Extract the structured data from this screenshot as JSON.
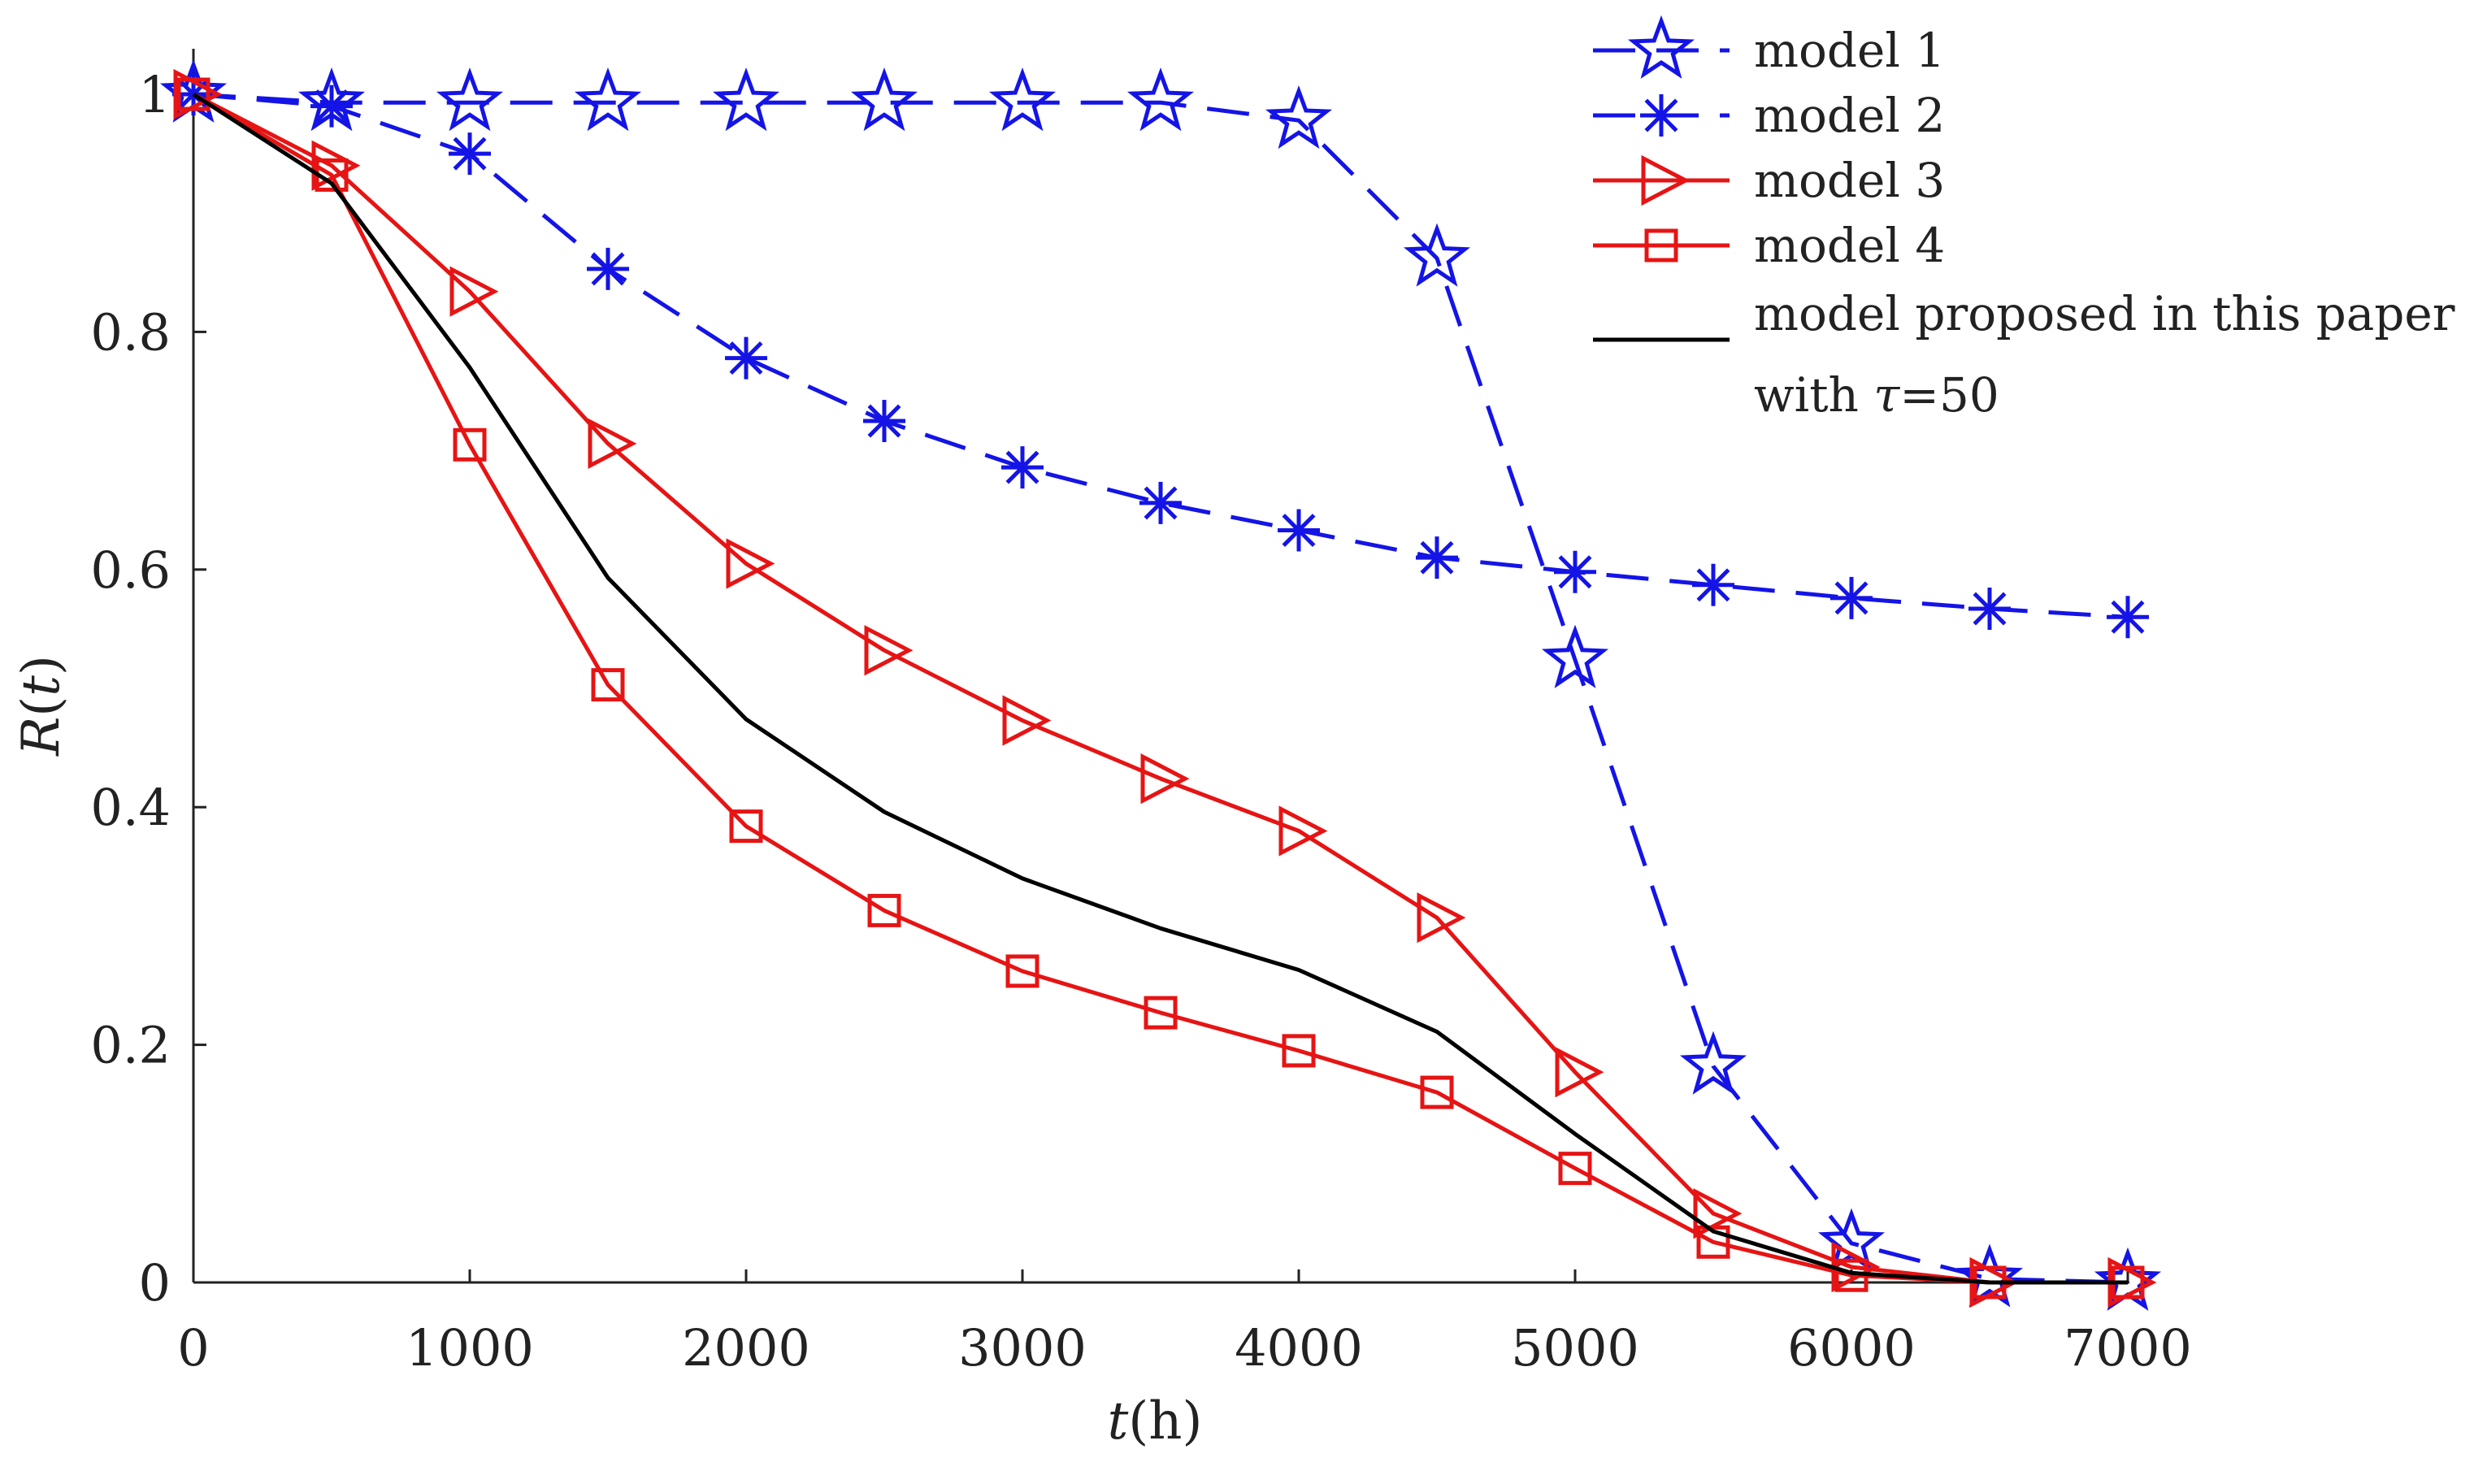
{
  "chart_data": {
    "type": "line",
    "title": "",
    "xlabel": {
      "italic": "t",
      "rest": "(h)"
    },
    "ylabel": {
      "plain": "R",
      "italic": "t"
    },
    "xlim": [
      0,
      7000
    ],
    "ylim": [
      0,
      1.05
    ],
    "x": [
      0,
      500,
      1000,
      1500,
      2000,
      2500,
      3000,
      3500,
      4000,
      4500,
      5000,
      5500,
      6000,
      6500,
      7000
    ],
    "xticks": [
      0,
      1000,
      2000,
      3000,
      4000,
      5000,
      6000,
      7000
    ],
    "xtick_labels": [
      "0",
      "1000",
      "2000",
      "3000",
      "4000",
      "5000",
      "6000",
      "7000"
    ],
    "yticks": [
      0,
      0.2,
      0.4,
      0.6,
      0.8,
      1
    ],
    "ytick_labels": [
      "0",
      "0.2",
      "0.4",
      "0.6",
      "0.8",
      "1"
    ],
    "legend_position": "top-right",
    "series": [
      {
        "key": "m1",
        "name": "model 1",
        "color": "#1414e6",
        "dash": "dashed",
        "marker": "star",
        "values": [
          1.0,
          0.993,
          0.993,
          0.993,
          0.993,
          0.993,
          0.993,
          0.993,
          0.978,
          0.862,
          0.524,
          0.182,
          0.033,
          0.003,
          0.0
        ]
      },
      {
        "key": "m2",
        "name": "model 2",
        "color": "#1414e6",
        "dash": "dashed",
        "marker": "asterisk",
        "values": [
          1.0,
          0.99,
          0.95,
          0.853,
          0.778,
          0.725,
          0.686,
          0.656,
          0.633,
          0.61,
          0.598,
          0.587,
          0.576,
          0.567,
          0.56
        ]
      },
      {
        "key": "m3",
        "name": "model 3",
        "color": "#e61414",
        "dash": "solid",
        "marker": "triangle-right",
        "values": [
          1.0,
          0.94,
          0.834,
          0.706,
          0.605,
          0.532,
          0.473,
          0.424,
          0.38,
          0.307,
          0.177,
          0.058,
          0.013,
          0.0,
          0.0
        ]
      },
      {
        "key": "m4",
        "name": "model 4",
        "color": "#e61414",
        "dash": "solid",
        "marker": "square",
        "values": [
          1.0,
          0.932,
          0.705,
          0.503,
          0.384,
          0.313,
          0.262,
          0.227,
          0.195,
          0.16,
          0.096,
          0.034,
          0.006,
          0.0,
          0.0
        ]
      },
      {
        "key": "proposed",
        "name": "model proposed in this paper",
        "name_line2_prefix": "with ",
        "name_line2_symbol": "τ",
        "name_line2_suffix": "=50",
        "color": "#000000",
        "dash": "solid",
        "marker": "none",
        "values": [
          1.0,
          0.925,
          0.77,
          0.593,
          0.474,
          0.396,
          0.34,
          0.298,
          0.263,
          0.211,
          0.125,
          0.043,
          0.008,
          0.0,
          0.0
        ]
      }
    ]
  }
}
